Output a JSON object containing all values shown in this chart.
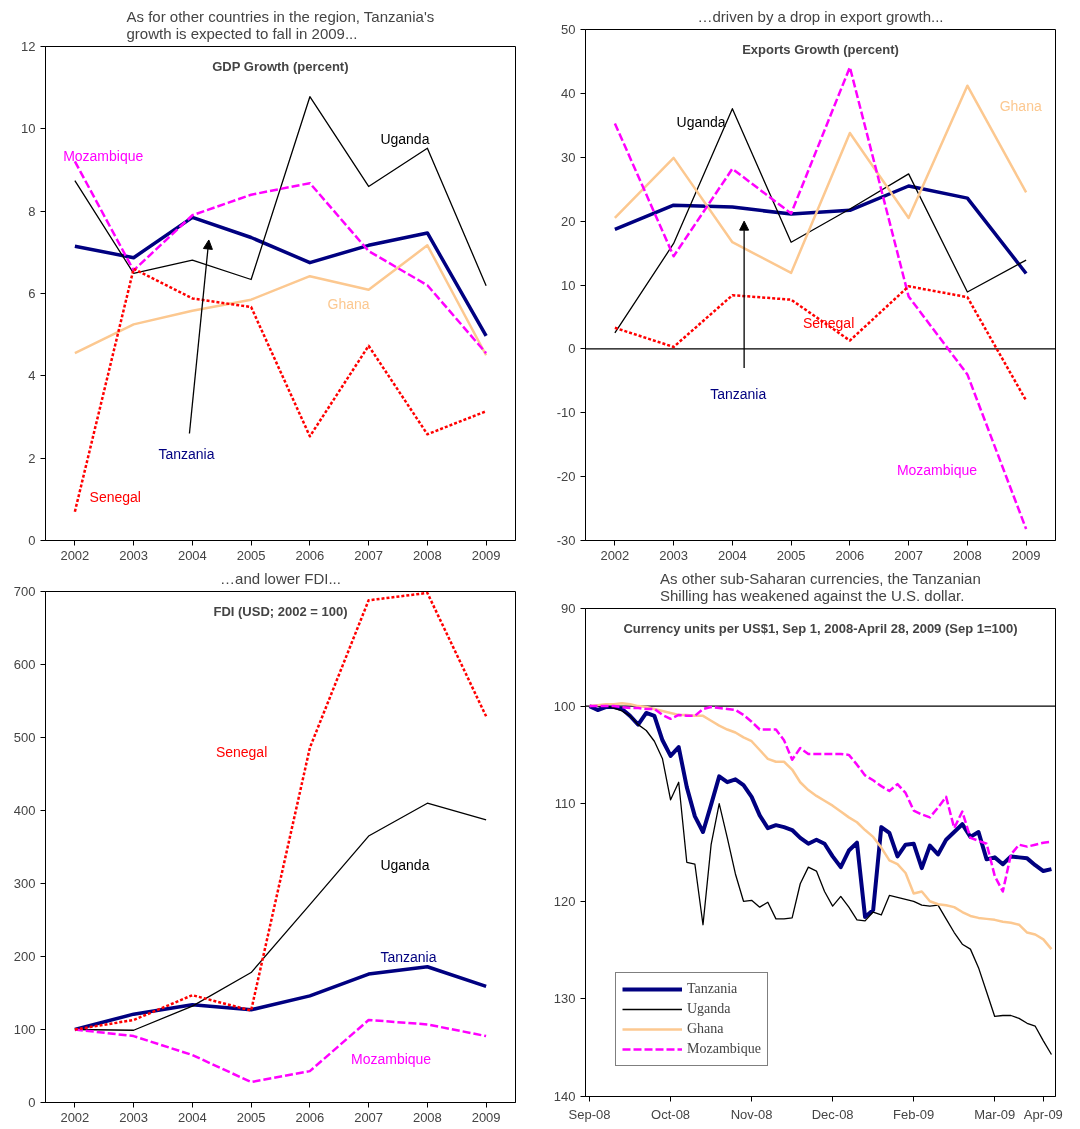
{
  "chart_data": [
    {
      "type": "line",
      "title": "As for other countries in the region, Tanzania's growth is expected to fall in 2009...",
      "subtitle": "GDP Growth (percent)",
      "categories": [
        "2002",
        "2003",
        "2004",
        "2005",
        "2006",
        "2007",
        "2008",
        "2009"
      ],
      "ylim": [
        0,
        12
      ],
      "yticks": [
        0,
        2,
        4,
        6,
        8,
        10,
        12
      ],
      "legend": false,
      "grid": false,
      "series": [
        {
          "name": "Tanzania",
          "color": "#000080",
          "line_style": "solid",
          "values": [
            7.15,
            6.87,
            7.85,
            7.36,
            6.75,
            7.17,
            7.47,
            4.97
          ]
        },
        {
          "name": "Uganda",
          "color": "#000000",
          "line_style": "solid",
          "values": [
            8.74,
            6.49,
            6.81,
            6.34,
            10.78,
            8.6,
            9.53,
            6.19
          ]
        },
        {
          "name": "Ghana",
          "color": "#fcc890",
          "line_style": "solid",
          "values": [
            4.55,
            5.25,
            5.58,
            5.85,
            6.42,
            6.09,
            7.17,
            4.5
          ]
        },
        {
          "name": "Senegal",
          "color": "#ff0000",
          "line_style": "dotted",
          "values": [
            0.7,
            6.6,
            5.88,
            5.67,
            2.53,
            4.73,
            2.58,
            3.14
          ]
        },
        {
          "name": "Mozambique",
          "color": "#ff00ff",
          "line_style": "dashed",
          "values": [
            9.21,
            6.56,
            7.9,
            8.4,
            8.68,
            7.03,
            6.2,
            4.55
          ]
        }
      ]
    },
    {
      "type": "line",
      "title": "…driven by a drop in export growth...",
      "subtitle": "Exports Growth (percent)",
      "categories": [
        "2002",
        "2003",
        "2004",
        "2005",
        "2006",
        "2007",
        "2008",
        "2009"
      ],
      "ylim": [
        -30,
        50
      ],
      "yticks": [
        -30,
        -20,
        -10,
        0,
        10,
        20,
        30,
        40,
        50
      ],
      "legend": false,
      "grid": false,
      "ref_lines": [
        {
          "axis": "y",
          "value": 0,
          "label": null,
          "color": "#000000"
        }
      ],
      "series": [
        {
          "name": "Tanzania",
          "color": "#000080",
          "line_style": "solid",
          "values": [
            18.7,
            22.5,
            22.2,
            21.1,
            21.7,
            25.5,
            23.6,
            11.8
          ]
        },
        {
          "name": "Uganda",
          "color": "#000000",
          "line_style": "solid",
          "values": [
            2.5,
            16.5,
            37.6,
            16.7,
            21.9,
            27.4,
            8.9,
            13.9
          ]
        },
        {
          "name": "Ghana",
          "color": "#fcc890",
          "line_style": "solid",
          "values": [
            20.5,
            29.9,
            16.7,
            11.9,
            33.8,
            20.5,
            41.2,
            24.5
          ]
        },
        {
          "name": "Senegal",
          "color": "#ff0000",
          "line_style": "dotted",
          "values": [
            3.3,
            0.3,
            8.4,
            7.7,
            1.3,
            9.8,
            8.1,
            -8.1
          ]
        },
        {
          "name": "Mozambique",
          "color": "#ff00ff",
          "line_style": "dashed",
          "values": [
            35.3,
            14.5,
            28.2,
            21.2,
            44.1,
            8.2,
            -4.0,
            -28.2
          ]
        }
      ]
    },
    {
      "type": "line",
      "title": "…and lower FDI...",
      "subtitle": "FDI (USD; 2002 = 100)",
      "categories": [
        "2002",
        "2003",
        "2004",
        "2005",
        "2006",
        "2007",
        "2008",
        "2009"
      ],
      "ylim": [
        0,
        700
      ],
      "yticks": [
        0,
        100,
        200,
        300,
        400,
        500,
        600,
        700
      ],
      "legend": false,
      "grid": false,
      "series": [
        {
          "name": "Tanzania",
          "color": "#000080",
          "line_style": "solid",
          "values": [
            100,
            121,
            134,
            127,
            146,
            176,
            186,
            159
          ]
        },
        {
          "name": "Uganda",
          "color": "#000000",
          "line_style": "solid",
          "values": [
            100,
            99,
            132,
            178,
            271,
            365,
            410,
            387
          ]
        },
        {
          "name": "Senegal",
          "color": "#ff0000",
          "line_style": "dotted",
          "values": [
            100,
            113,
            147,
            126,
            486,
            688,
            698,
            529
          ]
        },
        {
          "name": "Mozambique",
          "color": "#ff00ff",
          "line_style": "dashed",
          "values": [
            100,
            91,
            65,
            28,
            43,
            113,
            107,
            91
          ]
        }
      ]
    },
    {
      "type": "line",
      "title": "As other sub-Saharan currencies, the Tanzanian Shilling has weakened against the U.S. dollar.",
      "subtitle": "Currency units per US$1, Sep 1, 2008-April 28, 2009 (Sep 1=100)",
      "categories": [
        "Sep-08",
        null,
        null,
        null,
        null,
        null,
        null,
        null,
        null,
        null,
        "Oct-08",
        null,
        null,
        null,
        null,
        null,
        null,
        null,
        null,
        null,
        "Nov-08",
        null,
        null,
        null,
        null,
        null,
        null,
        null,
        null,
        null,
        "Dec-08",
        null,
        null,
        null,
        null,
        null,
        null,
        null,
        null,
        null,
        "Feb-09",
        null,
        null,
        null,
        null,
        null,
        null,
        null,
        null,
        null,
        "Mar-09",
        null,
        null,
        null,
        null,
        null,
        "Apr-09",
        null
      ],
      "ylim": [
        140,
        90
      ],
      "yticks": [
        90,
        100,
        110,
        120,
        130,
        140
      ],
      "legend": "bottom left",
      "grid": false,
      "ref_lines": [
        {
          "axis": "y",
          "value": 100,
          "label": null,
          "color": "#000000"
        }
      ],
      "series": [
        {
          "name": "Tanzania",
          "color": "#000080",
          "line_style": "solid",
          "values": [
            100,
            100.4,
            100.1,
            100.1,
            100.3,
            101,
            101.9,
            100.7,
            101,
            103.5,
            105.1,
            104.2,
            108.3,
            111.3,
            112.9,
            110.1,
            107.2,
            107.8,
            107.5,
            108.1,
            109.3,
            111.2,
            112.5,
            112.2,
            112.4,
            112.7,
            113.5,
            114.1,
            113.7,
            114.1,
            115.4,
            116.5,
            114.8,
            114,
            121.6,
            120.9,
            112.4,
            113,
            115.4,
            114.2,
            114.1,
            116.6,
            114.3,
            115.2,
            113.7,
            112.9,
            112.1,
            113.4,
            112.9,
            115.7,
            115.5,
            116.2,
            115.4,
            115.5,
            115.6,
            116.3,
            116.9,
            116.7
          ]
        },
        {
          "name": "Uganda",
          "color": "#000000",
          "line_style": "solid",
          "values": [
            100,
            100,
            100,
            100.2,
            100.5,
            101,
            101.9,
            102.5,
            103.6,
            105.4,
            109.6,
            107.8,
            116,
            116.2,
            122.4,
            114.2,
            110,
            113.5,
            117.2,
            120,
            119.9,
            120.6,
            120.1,
            121.8,
            121.8,
            121.7,
            118.2,
            116.5,
            116.9,
            119,
            120.5,
            119.5,
            120.6,
            121.9,
            122,
            121.1,
            121.4,
            119.4,
            119.6,
            119.8,
            120,
            120.4,
            120.5,
            120.4,
            121.8,
            123.2,
            124.4,
            124.9,
            126.8,
            129.3,
            131.8,
            131.7,
            131.7,
            132,
            132.5,
            132.8,
            134.3,
            135.7
          ]
        },
        {
          "name": "Ghana",
          "color": "#fcc890",
          "line_style": "solid",
          "values": [
            100,
            99.9,
            99.8,
            99.8,
            99.7,
            99.8,
            100,
            100.1,
            100.3,
            100.5,
            100.7,
            100.9,
            100.9,
            101,
            101,
            101.5,
            102,
            102.4,
            102.7,
            103.2,
            103.6,
            104.5,
            105.4,
            105.7,
            105.7,
            106.5,
            107.8,
            108.6,
            109.2,
            109.7,
            110.2,
            110.8,
            111.4,
            111.9,
            112.7,
            113.4,
            114.5,
            115.8,
            116.2,
            117.1,
            119.2,
            119,
            120,
            120.3,
            120.4,
            120.6,
            121.1,
            121.5,
            121.7,
            121.8,
            121.9,
            122.1,
            122.2,
            122.4,
            123.2,
            123.4,
            123.9,
            124.9
          ]
        },
        {
          "name": "Mozambique",
          "color": "#ff00ff",
          "line_style": "dashed",
          "values": [
            100,
            100,
            100,
            100,
            100.1,
            100.2,
            100.2,
            100.3,
            100.3,
            100.9,
            101.3,
            100.9,
            101,
            101,
            100.3,
            100.1,
            100.2,
            100.3,
            100.4,
            100.9,
            101.6,
            102.4,
            102.4,
            102.4,
            103.5,
            105.5,
            104.3,
            104.9,
            104.9,
            104.9,
            104.9,
            104.9,
            105,
            106,
            107.1,
            107.6,
            108.2,
            108.7,
            108,
            108.9,
            110.7,
            111.1,
            111.4,
            110.4,
            109.3,
            112.5,
            110.8,
            113.5,
            113.8,
            114.1,
            117.4,
            119,
            115.2,
            114.2,
            114.4,
            114.2,
            114,
            113.9
          ]
        }
      ]
    }
  ]
}
